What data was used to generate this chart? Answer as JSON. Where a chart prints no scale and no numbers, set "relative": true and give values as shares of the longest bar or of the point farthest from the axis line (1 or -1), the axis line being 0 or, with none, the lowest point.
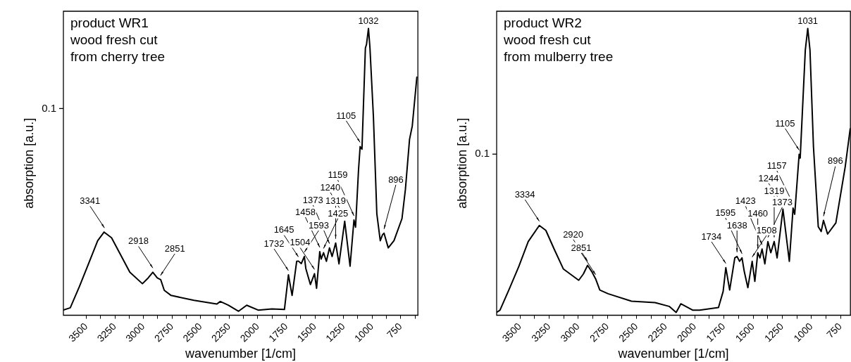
{
  "chart_data": [
    {
      "type": "line",
      "relative": true,
      "xlabel": "wavenumber [1/cm]",
      "ylabel": "absorption [a.u.]",
      "xlim": [
        3700,
        600
      ],
      "xticks": [
        3500,
        {
          "value": 3375,
          "label": null
        },
        3250,
        {
          "value": 3125,
          "label": null
        },
        3000,
        {
          "value": 2875,
          "label": null
        },
        2750,
        {
          "value": 2625,
          "label": null
        },
        2500,
        {
          "value": 2375,
          "label": null
        },
        2250,
        {
          "value": 2125,
          "label": null
        },
        2000,
        {
          "value": 1875,
          "label": null
        },
        1750,
        {
          "value": 1625,
          "label": null
        },
        1500,
        {
          "value": 1375,
          "label": null
        },
        1250,
        {
          "value": 1125,
          "label": null
        },
        1000,
        {
          "value": 875,
          "label": null
        },
        750,
        {
          "value": 625,
          "label": null
        }
      ],
      "grid": false,
      "legend": false,
      "marker": "none",
      "line_style": "solid",
      "x": [
        3700,
        3640,
        3560,
        3480,
        3400,
        3344,
        3279,
        3199,
        3119,
        3009,
        2959,
        2918,
        2879,
        2849,
        2818,
        2758,
        2558,
        2359,
        2328,
        2258,
        2168,
        2097,
        1997,
        1877,
        1767,
        1732,
        1700,
        1660,
        1645,
        1620,
        1593,
        1580,
        1540,
        1504,
        1486,
        1458,
        1446,
        1425,
        1400,
        1373,
        1350,
        1319,
        1290,
        1240,
        1193,
        1159,
        1145,
        1119,
        1105,
        1089,
        1059,
        1049,
        1032,
        1019,
        989,
        959,
        929,
        909,
        896,
        859,
        809,
        739,
        709,
        673,
        649,
        629,
        609
      ],
      "series": [
        {
          "color": "#000000",
          "values": [
            0.018,
            0.026,
            0.1,
            0.18,
            0.26,
            0.29,
            0.27,
            0.21,
            0.15,
            0.11,
            0.13,
            0.15,
            0.13,
            0.124,
            0.087,
            0.069,
            0.052,
            0.039,
            0.048,
            0.035,
            0.014,
            0.035,
            0.018,
            0.022,
            0.02,
            0.141,
            0.069,
            0.188,
            0.189,
            0.18,
            0.205,
            0.163,
            0.107,
            0.145,
            0.094,
            0.222,
            0.196,
            0.218,
            0.188,
            0.235,
            0.205,
            0.252,
            0.179,
            0.328,
            0.171,
            0.332,
            0.307,
            0.507,
            0.588,
            0.579,
            0.932,
            0.945,
            1.0,
            0.932,
            0.694,
            0.354,
            0.26,
            0.281,
            0.286,
            0.235,
            0.26,
            0.337,
            0.439,
            0.613,
            0.66,
            0.745,
            0.83
          ]
        }
      ],
      "annotations": [
        "product WR1",
        "wood fresh cut",
        "from cherry tree",
        "0.1",
        {
          "text": "3341",
          "x": 3341,
          "y": 0.29
        },
        {
          "text": "2918",
          "x": 2918,
          "y": 0.15
        },
        {
          "text": "2851",
          "x": 2851,
          "y": 0.124
        },
        {
          "text": "1732",
          "x": 1732,
          "y": 0.141
        },
        {
          "text": "1645",
          "x": 1645,
          "y": 0.189
        },
        {
          "text": "1593",
          "x": 1593,
          "y": 0.205
        },
        {
          "text": "1504",
          "x": 1504,
          "y": 0.145
        },
        {
          "text": "1458",
          "x": 1458,
          "y": 0.222
        },
        {
          "text": "1425",
          "x": 1425,
          "y": 0.218
        },
        {
          "text": "1373",
          "x": 1373,
          "y": 0.235
        },
        {
          "text": "1319",
          "x": 1319,
          "y": 0.252
        },
        {
          "text": "1240",
          "x": 1240,
          "y": 0.328
        },
        {
          "text": "1159",
          "x": 1159,
          "y": 0.332
        },
        {
          "text": "1105",
          "x": 1105,
          "y": 0.588
        },
        {
          "text": "1032",
          "x": 1032,
          "y": 1.0
        },
        {
          "text": "896",
          "x": 896,
          "y": 0.286
        }
      ]
    },
    {
      "type": "line",
      "relative": true,
      "xlabel": "wavenumber [1/cm]",
      "ylabel": "absorption [a.u.]",
      "xlim": [
        3700,
        665
      ],
      "xticks": [
        3500,
        {
          "value": 3375,
          "label": null
        },
        3250,
        {
          "value": 3125,
          "label": null
        },
        3000,
        {
          "value": 2875,
          "label": null
        },
        2750,
        {
          "value": 2625,
          "label": null
        },
        2500,
        {
          "value": 2375,
          "label": null
        },
        2250,
        {
          "value": 2125,
          "label": null
        },
        2000,
        {
          "value": 1875,
          "label": null
        },
        1750,
        {
          "value": 1625,
          "label": null
        },
        1500,
        {
          "value": 1375,
          "label": null
        },
        1250,
        {
          "value": 1125,
          "label": null
        },
        1000,
        {
          "value": 875,
          "label": null
        },
        750
      ],
      "grid": false,
      "legend": false,
      "marker": "none",
      "line_style": "solid",
      "x": [
        3700,
        3671,
        3591,
        3510,
        3429,
        3334,
        3278,
        3207,
        3127,
        2996,
        2956,
        2920,
        2885,
        2851,
        2815,
        2744,
        2543,
        2341,
        2220,
        2160,
        2120,
        2019,
        1959,
        1797,
        1757,
        1734,
        1701,
        1657,
        1638,
        1616,
        1595,
        1576,
        1545,
        1508,
        1485,
        1460,
        1441,
        1423,
        1399,
        1373,
        1348,
        1319,
        1294,
        1244,
        1189,
        1157,
        1143,
        1105,
        1096,
        1052,
        1031,
        1012,
        982,
        941,
        916,
        896,
        861,
        790,
        710,
        667
      ],
      "series": [
        {
          "color": "#000000",
          "values": [
            0.01,
            0.018,
            0.092,
            0.17,
            0.257,
            0.313,
            0.296,
            0.231,
            0.161,
            0.122,
            0.144,
            0.174,
            0.153,
            0.127,
            0.088,
            0.075,
            0.049,
            0.044,
            0.031,
            0.01,
            0.04,
            0.018,
            0.018,
            0.027,
            0.083,
            0.166,
            0.088,
            0.2,
            0.205,
            0.188,
            0.2,
            0.153,
            0.096,
            0.188,
            0.118,
            0.218,
            0.2,
            0.231,
            0.179,
            0.257,
            0.218,
            0.257,
            0.2,
            0.37,
            0.188,
            0.374,
            0.352,
            0.561,
            0.548,
            0.925,
            1.0,
            0.925,
            0.587,
            0.309,
            0.292,
            0.331,
            0.283,
            0.322,
            0.517,
            0.65
          ]
        }
      ],
      "annotations": [
        "product WR2",
        "wood fresh cut",
        "from mulberry tree",
        "0.1",
        {
          "text": "3334",
          "x": 3334,
          "y": 0.313
        },
        {
          "text": "2920",
          "x": 2920,
          "y": 0.174
        },
        {
          "text": "2851",
          "x": 2851,
          "y": 0.127
        },
        {
          "text": "1734",
          "x": 1734,
          "y": 0.166
        },
        {
          "text": "1638",
          "x": 1638,
          "y": 0.205
        },
        {
          "text": "1595",
          "x": 1595,
          "y": 0.2
        },
        {
          "text": "1508",
          "x": 1508,
          "y": 0.188
        },
        {
          "text": "1460",
          "x": 1460,
          "y": 0.218
        },
        {
          "text": "1423",
          "x": 1423,
          "y": 0.231
        },
        {
          "text": "1373",
          "x": 1373,
          "y": 0.257
        },
        {
          "text": "1319",
          "x": 1319,
          "y": 0.257
        },
        {
          "text": "1244",
          "x": 1244,
          "y": 0.37
        },
        {
          "text": "1157",
          "x": 1157,
          "y": 0.374
        },
        {
          "text": "1105",
          "x": 1105,
          "y": 0.561
        },
        {
          "text": "1031",
          "x": 1031,
          "y": 1.0
        },
        {
          "text": "896",
          "x": 896,
          "y": 0.331
        }
      ]
    }
  ]
}
